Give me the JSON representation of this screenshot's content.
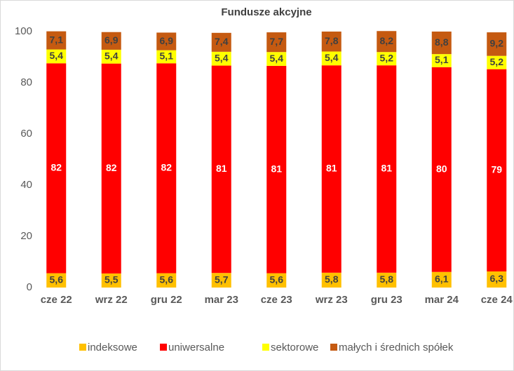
{
  "chart_data": {
    "type": "stacked_bar",
    "title": "Fundusze akcyjne",
    "categories": [
      "cze 22",
      "wrz 22",
      "gru 22",
      "mar 23",
      "cze 23",
      "wrz 23",
      "gru 23",
      "mar 24",
      "cze 24"
    ],
    "series": [
      {
        "name": "indeksowe",
        "color": "#ffc000",
        "values": [
          5.6,
          5.5,
          5.6,
          5.7,
          5.6,
          5.8,
          5.8,
          6.1,
          6.3
        ],
        "value_labels": [
          "5,6",
          "5,5",
          "5,6",
          "5,7",
          "5,6",
          "5,8",
          "5,8",
          "6,1",
          "6,3"
        ]
      },
      {
        "name": "uniwersalne",
        "color": "#ff0000",
        "values": [
          82,
          82,
          82,
          81,
          81,
          81,
          81,
          80,
          79
        ]
      },
      {
        "name": "sektorowe",
        "color": "#ffff00",
        "values": [
          5.4,
          5.4,
          5.1,
          5.4,
          5.4,
          5.4,
          5.2,
          5.1,
          5.2
        ],
        "value_labels": [
          "5,4",
          "5,4",
          "5,1",
          "5,4",
          "5,4",
          "5,4",
          "5,2",
          "5,1",
          "5,2"
        ]
      },
      {
        "name": "małych i średnich spółek",
        "color": "#c55a11",
        "values": [
          7.1,
          6.9,
          6.9,
          7.4,
          7.7,
          7.8,
          8.2,
          8.8,
          9.2
        ],
        "value_labels": [
          "7,1",
          "6,9",
          "6,9",
          "7,4",
          "7,7",
          "7,8",
          "8,2",
          "8,8",
          "9,2"
        ]
      }
    ],
    "ylim": [
      0,
      100
    ],
    "yticks": [
      0,
      20,
      40,
      60,
      80,
      100
    ],
    "grid": false,
    "legend": "bottom"
  }
}
